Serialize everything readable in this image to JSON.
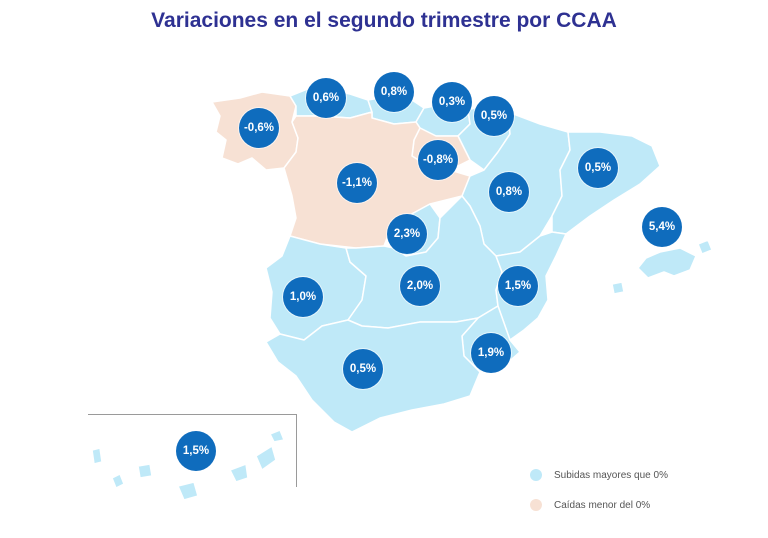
{
  "title": "Variaciones en el segundo trimestre por CCAA",
  "colors": {
    "rise": "#bfe9f8",
    "fall": "#f7e1d4",
    "bubble": "#0f6cbd",
    "title": "#2e3192",
    "border": "#ffffff"
  },
  "regions": [
    {
      "id": "galicia",
      "value": "-0,6%",
      "trend": "fall"
    },
    {
      "id": "asturias",
      "value": "0,6%",
      "trend": "rise"
    },
    {
      "id": "cantabria",
      "value": "0,8%",
      "trend": "rise"
    },
    {
      "id": "pais-vasco",
      "value": "0,3%",
      "trend": "rise"
    },
    {
      "id": "navarra",
      "value": "0,5%",
      "trend": "rise"
    },
    {
      "id": "la-rioja",
      "value": "-0,8%",
      "trend": "fall"
    },
    {
      "id": "castilla-leon",
      "value": "-1,1%",
      "trend": "fall"
    },
    {
      "id": "aragon",
      "value": "0,8%",
      "trend": "rise"
    },
    {
      "id": "cataluna",
      "value": "0,5%",
      "trend": "rise"
    },
    {
      "id": "baleares",
      "value": "5,4%",
      "trend": "rise"
    },
    {
      "id": "madrid",
      "value": "2,3%",
      "trend": "rise"
    },
    {
      "id": "extremadura",
      "value": "1,0%",
      "trend": "rise"
    },
    {
      "id": "castilla-la-mancha",
      "value": "2,0%",
      "trend": "rise"
    },
    {
      "id": "valencia",
      "value": "1,5%",
      "trend": "rise"
    },
    {
      "id": "murcia",
      "value": "1,9%",
      "trend": "rise"
    },
    {
      "id": "andalucia",
      "value": "0,5%",
      "trend": "rise"
    },
    {
      "id": "canarias",
      "value": "1,5%",
      "trend": "rise"
    }
  ],
  "legend": [
    {
      "label": "Subidas mayores que 0%",
      "color": "#bfe9f8"
    },
    {
      "label": "Caídas menor del 0%",
      "color": "#f7e1d4"
    }
  ]
}
